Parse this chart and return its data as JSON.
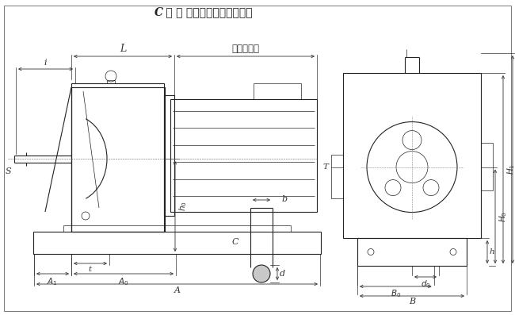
{
  "title_c": "C",
  "title_rest": " 型 － 底脚安装斜齿轮减速机",
  "dim_note": "按电机尺寸",
  "bg_color": "#ffffff",
  "line_color": "#222222",
  "dim_color": "#333333"
}
